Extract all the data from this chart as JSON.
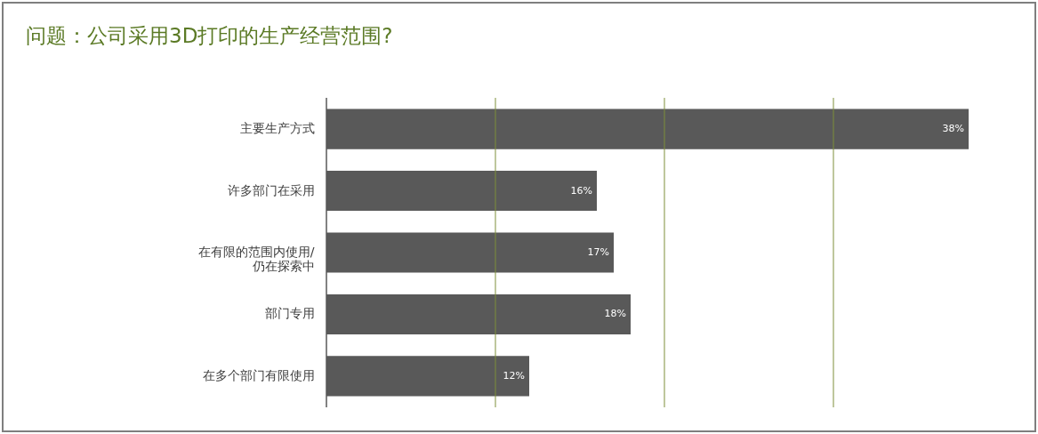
{
  "chart_data": {
    "type": "bar",
    "orientation": "horizontal",
    "title": "问题：公司采用3D打印的生产经营范围?",
    "categories": [
      "主要生产方式",
      "许多部门在采用",
      "在有限的范围内使用/\n仍在探索中",
      "部门专用",
      "在多个部门有限使用"
    ],
    "values": [
      38,
      16,
      17,
      18,
      12
    ],
    "value_labels": [
      "38%",
      "16%",
      "17%",
      "18%",
      "12%"
    ],
    "color": "#595959",
    "ref_lines": [
      {
        "axis": "x",
        "value": 10,
        "color": "#7f8f3a"
      },
      {
        "axis": "x",
        "value": 20,
        "color": "#7f8f3a"
      },
      {
        "axis": "x",
        "value": 30,
        "color": "#7f8f3a"
      }
    ],
    "tick_labels": "y"
  }
}
